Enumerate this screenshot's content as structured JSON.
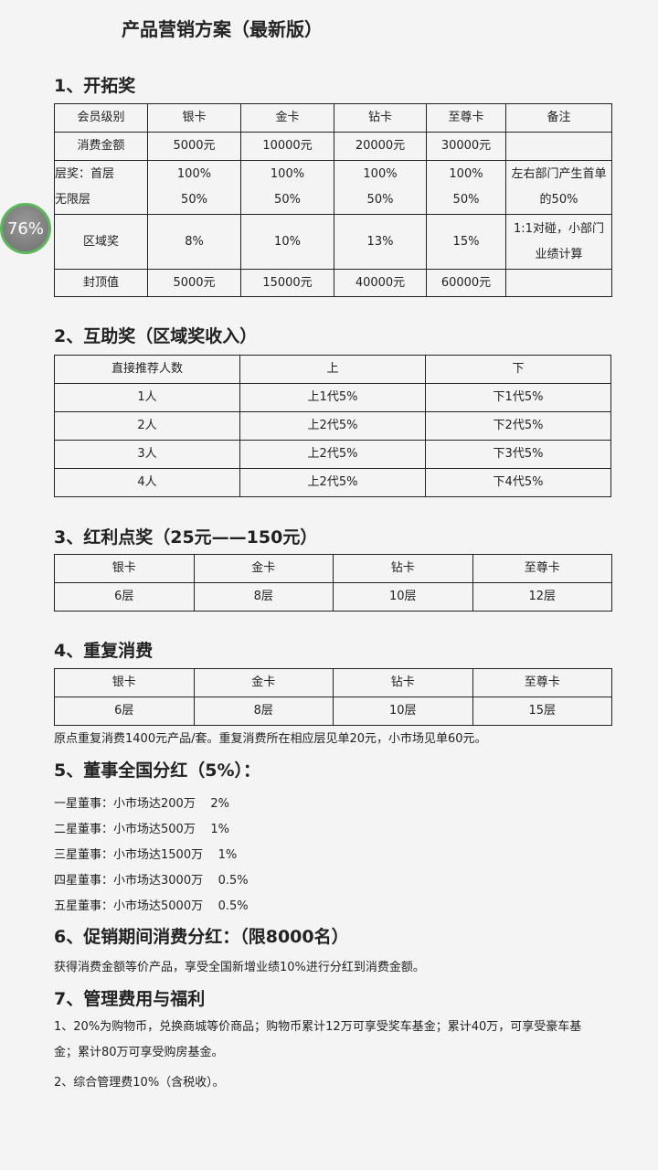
{
  "title": "产品营销方案（最新版）",
  "badge": {
    "value": "76%",
    "color": "#5cb85c"
  },
  "s1": {
    "heading": "1、开拓奖",
    "header": [
      "会员级别",
      "银卡",
      "金卡",
      "钻卡",
      "至尊卡",
      "备注"
    ],
    "rows": [
      [
        "消费金额",
        "5000元",
        "10000元",
        "20000元",
        "30000元",
        ""
      ],
      [
        "层奖：首层\n无限层",
        "100%\n50%",
        "100%\n50%",
        "100%\n50%",
        "100%\n50%",
        "左右部门产生首单\n的50%"
      ],
      [
        "区域奖",
        "8%",
        "10%",
        "13%",
        "15%",
        "1:1对碰，小部门\n业绩计算"
      ],
      [
        "封顶值",
        "5000元",
        "15000元",
        "40000元",
        "60000元",
        ""
      ]
    ]
  },
  "s2": {
    "heading": "2、互助奖（区域奖收入）",
    "header": [
      "直接推荐人数",
      "上",
      "下"
    ],
    "rows": [
      [
        "1人",
        "上1代5%",
        "下1代5%"
      ],
      [
        "2人",
        "上2代5%",
        "下2代5%"
      ],
      [
        "3人",
        "上2代5%",
        "下3代5%"
      ],
      [
        "4人",
        "上2代5%",
        "下4代5%"
      ]
    ]
  },
  "s3": {
    "heading": "3、红利点奖（25元——150元）",
    "header": [
      "银卡",
      "金卡",
      "钻卡",
      "至尊卡"
    ],
    "row": [
      "6层",
      "8层",
      "10层",
      "12层"
    ]
  },
  "s4": {
    "heading": "4、重复消费",
    "header": [
      "银卡",
      "金卡",
      "钻卡",
      "至尊卡"
    ],
    "row": [
      "6层",
      "8层",
      "10层",
      "15层"
    ],
    "note": "原点重复消费1400元产品/套。重复消费所在相应层见单20元，小市场见单60元。"
  },
  "s5": {
    "heading": "5、董事全国分红（5%）：",
    "lines": [
      "一星董事：小市场达200万    2%",
      "二星董事：小市场达500万    1%",
      "三星董事：小市场达1500万    1%",
      "四星董事：小市场达3000万    0.5%",
      "五星董事：小市场达5000万    0.5%"
    ]
  },
  "s6": {
    "heading": "6、促销期间消费分红：（限8000名）",
    "text": "获得消费金额等价产品，享受全国新增业绩10%进行分红到消费金额。"
  },
  "s7": {
    "heading": "7、管理费用与福利",
    "lines": [
      "1、20%为购物币，兑换商城等价商品；购物币累计12万可享受奖车基金；累计40万，可享受豪车基金；累计80万可享受购房基金。",
      "2、综合管理费10%（含税收）。"
    ]
  }
}
